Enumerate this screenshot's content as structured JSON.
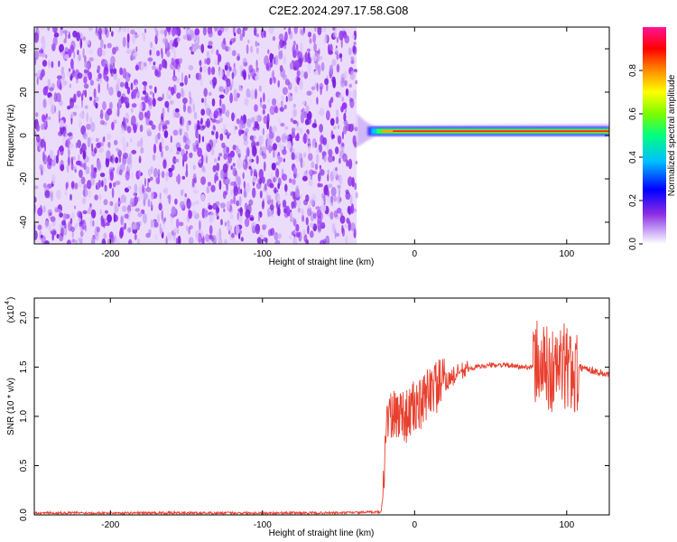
{
  "title": "C2E2.2024.297.17.58.G08",
  "chart_data": [
    {
      "type": "heatmap",
      "xlabel": "Height of straight line (km)",
      "ylabel": "Frequency (Hz)",
      "xlim": [
        -250,
        128
      ],
      "ylim": [
        -50,
        50
      ],
      "xticks": [
        -200,
        -100,
        0,
        100
      ],
      "yticks": [
        -40,
        -20,
        0,
        20,
        40
      ],
      "colorbar": {
        "label": "Normalized spectral amplitude",
        "range": [
          0,
          1
        ],
        "ticks": [
          0.0,
          0.2,
          0.4,
          0.6,
          0.8
        ],
        "tick_labels": [
          "0.0",
          "0.2",
          "0.4",
          "0.6",
          "0.8"
        ],
        "colormap": [
          "#ffffff",
          "#c9a6f7",
          "#8a2be2",
          "#0000ff",
          "#00bfff",
          "#00ff7f",
          "#7cfc00",
          "#ffff00",
          "#ff8c00",
          "#ff0000",
          "#ff1493"
        ]
      },
      "regions": [
        {
          "x_range": [
            -250,
            -38
          ],
          "freq_range": [
            -50,
            50
          ],
          "description": "broadband noise",
          "amplitude_range": [
            0.0,
            0.15
          ]
        },
        {
          "x_range": [
            -38,
            128
          ],
          "freq_center": 2,
          "amplitude_peak": 0.85
        }
      ]
    },
    {
      "type": "line",
      "xlabel": "Height of straight line (km)",
      "ylabel": "SNR (10 * v/v)",
      "y_multiplier_label": "(x10",
      "y_multiplier_exp": "4",
      "xlim": [
        -250,
        128
      ],
      "ylim": [
        0,
        2.2
      ],
      "xticks": [
        -200,
        -100,
        0,
        100
      ],
      "yticks": [
        0.0,
        0.5,
        1.0,
        1.5,
        2.0
      ],
      "ytick_labels": [
        "0.0",
        "0.5",
        "1.0",
        "1.5",
        "2.0"
      ],
      "color": "#e8402f",
      "series": [
        {
          "x": [
            -250,
            -200,
            -150,
            -100,
            -50,
            -22,
            -20,
            -19,
            -17,
            -15,
            -10,
            -5,
            0,
            5,
            10,
            15,
            20,
            25,
            30,
            40,
            50,
            60,
            70,
            78,
            80,
            85,
            90,
            95,
            100,
            105,
            110,
            115,
            120,
            128
          ],
          "y": [
            0.02,
            0.02,
            0.02,
            0.02,
            0.02,
            0.03,
            0.3,
            0.95,
            1.05,
            0.95,
            1.05,
            1.0,
            1.1,
            1.1,
            1.3,
            1.3,
            1.35,
            1.4,
            1.45,
            1.5,
            1.52,
            1.52,
            1.5,
            1.5,
            1.55,
            1.5,
            1.45,
            1.5,
            1.5,
            1.45,
            1.5,
            1.48,
            1.45,
            1.42
          ]
        }
      ]
    }
  ]
}
